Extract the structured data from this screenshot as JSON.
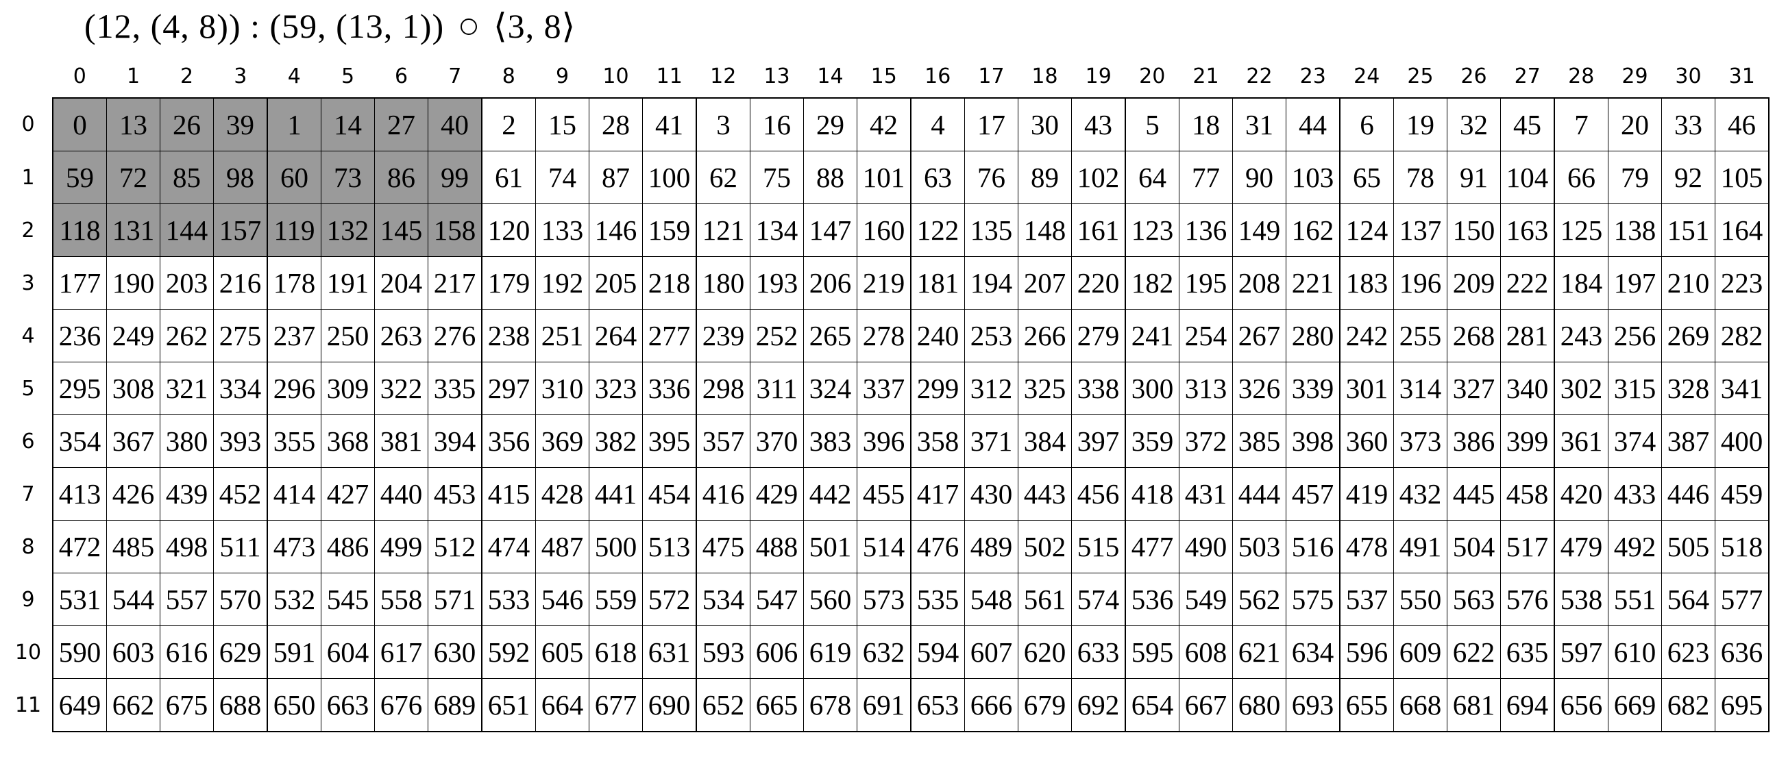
{
  "title": {
    "left": "(12, (4, 8)) : (59, (13, 1))",
    "operator": "∘",
    "right": "⟨3, 8⟩"
  },
  "grid": {
    "col_headers": [
      "0",
      "1",
      "2",
      "3",
      "4",
      "5",
      "6",
      "7",
      "8",
      "9",
      "10",
      "11",
      "12",
      "13",
      "14",
      "15",
      "16",
      "17",
      "18",
      "19",
      "20",
      "21",
      "22",
      "23",
      "24",
      "25",
      "26",
      "27",
      "28",
      "29",
      "30",
      "31"
    ],
    "row_headers": [
      "0",
      "1",
      "2",
      "3",
      "4",
      "5",
      "6",
      "7",
      "8",
      "9",
      "10",
      "11"
    ],
    "rows": [
      [
        0,
        13,
        26,
        39,
        1,
        14,
        27,
        40,
        2,
        15,
        28,
        41,
        3,
        16,
        29,
        42,
        4,
        17,
        30,
        43,
        5,
        18,
        31,
        44,
        6,
        19,
        32,
        45,
        7,
        20,
        33,
        46
      ],
      [
        59,
        72,
        85,
        98,
        60,
        73,
        86,
        99,
        61,
        74,
        87,
        100,
        62,
        75,
        88,
        101,
        63,
        76,
        89,
        102,
        64,
        77,
        90,
        103,
        65,
        78,
        91,
        104,
        66,
        79,
        92,
        105
      ],
      [
        118,
        131,
        144,
        157,
        119,
        132,
        145,
        158,
        120,
        133,
        146,
        159,
        121,
        134,
        147,
        160,
        122,
        135,
        148,
        161,
        123,
        136,
        149,
        162,
        124,
        137,
        150,
        163,
        125,
        138,
        151,
        164
      ],
      [
        177,
        190,
        203,
        216,
        178,
        191,
        204,
        217,
        179,
        192,
        205,
        218,
        180,
        193,
        206,
        219,
        181,
        194,
        207,
        220,
        182,
        195,
        208,
        221,
        183,
        196,
        209,
        222,
        184,
        197,
        210,
        223
      ],
      [
        236,
        249,
        262,
        275,
        237,
        250,
        263,
        276,
        238,
        251,
        264,
        277,
        239,
        252,
        265,
        278,
        240,
        253,
        266,
        279,
        241,
        254,
        267,
        280,
        242,
        255,
        268,
        281,
        243,
        256,
        269,
        282
      ],
      [
        295,
        308,
        321,
        334,
        296,
        309,
        322,
        335,
        297,
        310,
        323,
        336,
        298,
        311,
        324,
        337,
        299,
        312,
        325,
        338,
        300,
        313,
        326,
        339,
        301,
        314,
        327,
        340,
        302,
        315,
        328,
        341
      ],
      [
        354,
        367,
        380,
        393,
        355,
        368,
        381,
        394,
        356,
        369,
        382,
        395,
        357,
        370,
        383,
        396,
        358,
        371,
        384,
        397,
        359,
        372,
        385,
        398,
        360,
        373,
        386,
        399,
        361,
        374,
        387,
        400
      ],
      [
        413,
        426,
        439,
        452,
        414,
        427,
        440,
        453,
        415,
        428,
        441,
        454,
        416,
        429,
        442,
        455,
        417,
        430,
        443,
        456,
        418,
        431,
        444,
        457,
        419,
        432,
        445,
        458,
        420,
        433,
        446,
        459
      ],
      [
        472,
        485,
        498,
        511,
        473,
        486,
        499,
        512,
        474,
        487,
        500,
        513,
        475,
        488,
        501,
        514,
        476,
        489,
        502,
        515,
        477,
        490,
        503,
        516,
        478,
        491,
        504,
        517,
        479,
        492,
        505,
        518
      ],
      [
        531,
        544,
        557,
        570,
        532,
        545,
        558,
        571,
        533,
        546,
        559,
        572,
        534,
        547,
        560,
        573,
        535,
        548,
        561,
        574,
        536,
        549,
        562,
        575,
        537,
        550,
        563,
        576,
        538,
        551,
        564,
        577
      ],
      [
        590,
        603,
        616,
        629,
        591,
        604,
        617,
        630,
        592,
        605,
        618,
        631,
        593,
        606,
        619,
        632,
        594,
        607,
        620,
        633,
        595,
        608,
        621,
        634,
        596,
        609,
        622,
        635,
        597,
        610,
        623,
        636
      ],
      [
        649,
        662,
        675,
        688,
        650,
        663,
        676,
        689,
        651,
        664,
        677,
        690,
        652,
        665,
        678,
        691,
        653,
        666,
        679,
        692,
        654,
        667,
        680,
        693,
        655,
        668,
        681,
        694,
        656,
        669,
        682,
        695
      ]
    ],
    "shaded_region": {
      "row_count": 3,
      "col_count": 8,
      "color": "#9a9a9a"
    },
    "column_group_size": 4
  },
  "colors": {
    "background": "#ffffff",
    "grid_line": "#000000",
    "text": "#000000",
    "shade": "#9a9a9a"
  }
}
